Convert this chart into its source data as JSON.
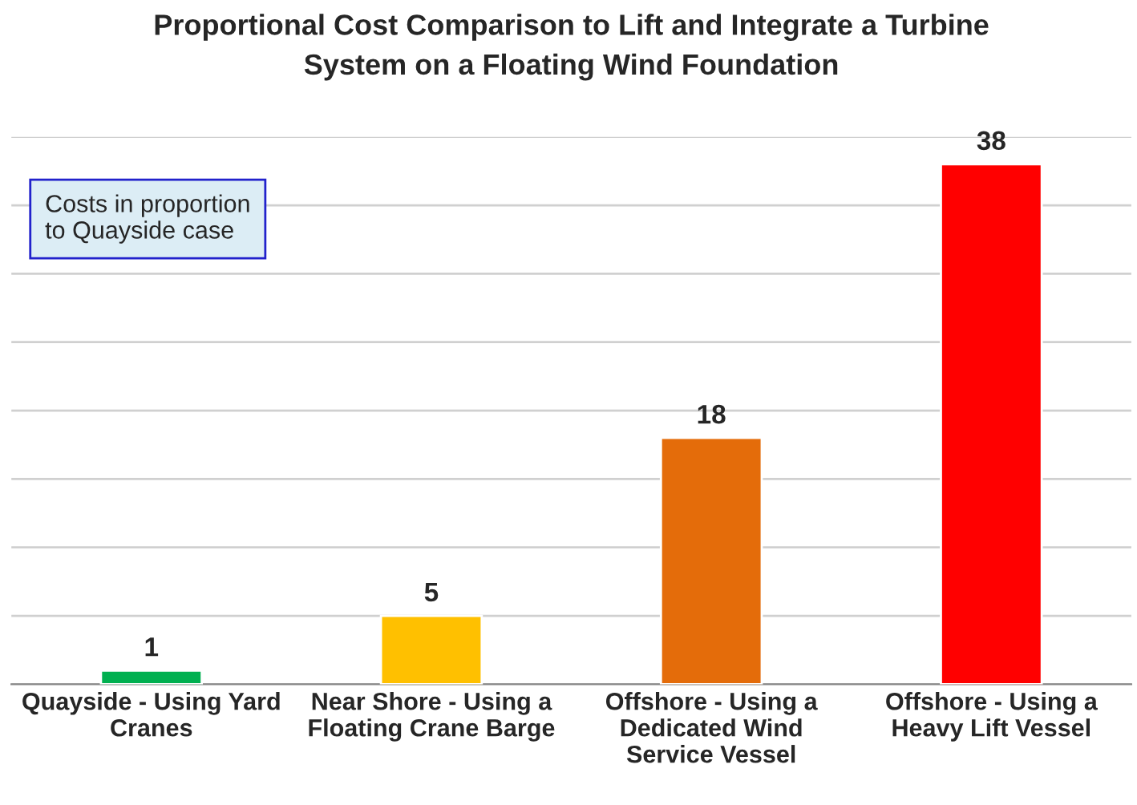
{
  "chart_data": {
    "type": "bar",
    "title": "Proportional Cost Comparison to Lift and Integrate a Turbine\nSystem on a Floating Wind Foundation",
    "categories": [
      "Quayside - Using Yard\nCranes",
      "Near Shore - Using a\nFloating Crane Barge",
      "Offshore - Using a\nDedicated Wind\nService Vessel",
      "Offshore - Using a\nHeavy Lift Vessel"
    ],
    "values": [
      1,
      5,
      18,
      38
    ],
    "colors": [
      "#00b050",
      "#ffc000",
      "#e46c0a",
      "#ff0000"
    ],
    "ylim": [
      0,
      40
    ],
    "yticks": [
      {
        "value": 0,
        "label": null
      },
      {
        "value": 5,
        "label": null
      },
      {
        "value": 10,
        "label": null
      },
      {
        "value": 15,
        "label": null
      },
      {
        "value": 20,
        "label": null
      },
      {
        "value": 25,
        "label": null
      },
      {
        "value": 30,
        "label": null
      },
      {
        "value": 35,
        "label": null
      },
      {
        "value": 40,
        "label": null
      }
    ],
    "tick_labels": "x",
    "grid": "y",
    "data_labels": true,
    "annotations": [
      "Costs in proportion\nto Quayside case"
    ]
  }
}
